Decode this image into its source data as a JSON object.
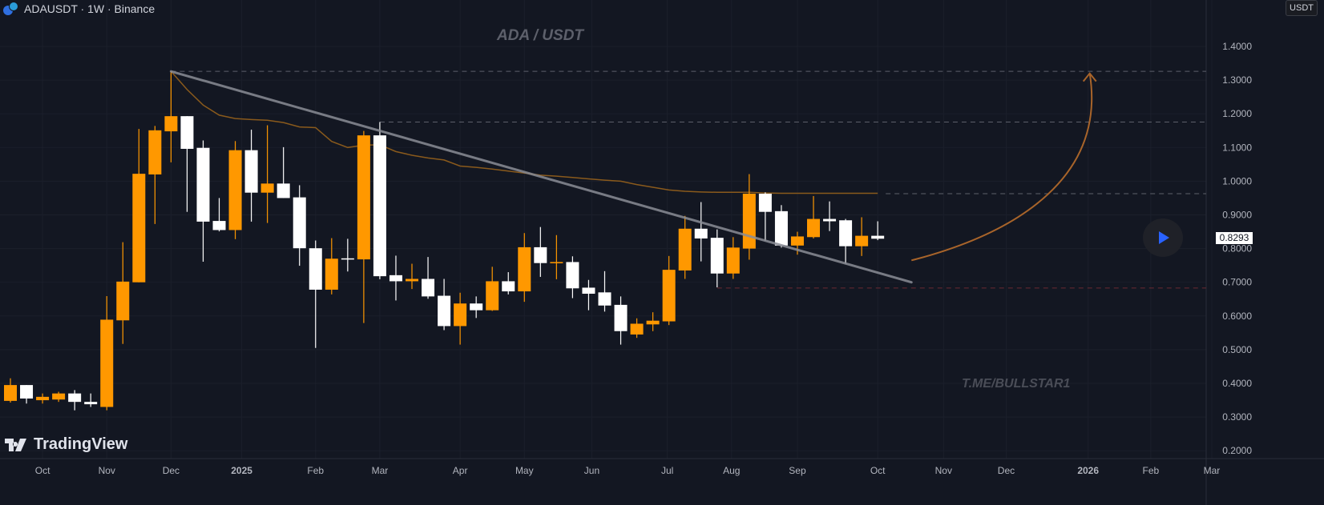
{
  "header": {
    "symbol_title": "ADAUSDT · 1W · Binance",
    "currency": "USDT"
  },
  "overlay": {
    "title": "ADA / USDT",
    "watermark": "T.ME/BULLSTAR1",
    "logo": "TradingView"
  },
  "last_price_label": "0.8293",
  "colors": {
    "bg": "#131722",
    "up": "#ff9800",
    "down": "#ffffff",
    "ma": "#8a5a1c",
    "trendline": "#8a8d96",
    "arrow": "#a8642a",
    "support": "#6b2a33",
    "accent": "#2962ff"
  },
  "chart_data": {
    "type": "candlestick",
    "interval": "1W",
    "ylim": [
      0.17,
      1.49
    ],
    "y_ticks": [
      "1.4000",
      "1.3000",
      "1.2000",
      "1.1000",
      "1.0000",
      "0.9000",
      "0.8000",
      "0.7000",
      "0.6000",
      "0.5000",
      "0.4000",
      "0.3000",
      "0.2000"
    ],
    "x_ticks": [
      {
        "label": "Oct",
        "at": 2
      },
      {
        "label": "Nov",
        "at": 6
      },
      {
        "label": "Dec",
        "at": 10
      },
      {
        "label": "2025",
        "at": 14.4
      },
      {
        "label": "Feb",
        "at": 19
      },
      {
        "label": "Mar",
        "at": 23
      },
      {
        "label": "Apr",
        "at": 28
      },
      {
        "label": "May",
        "at": 32
      },
      {
        "label": "Jun",
        "at": 36.2
      },
      {
        "label": "Jul",
        "at": 40.9
      },
      {
        "label": "Aug",
        "at": 44.9
      },
      {
        "label": "Sep",
        "at": 49
      },
      {
        "label": "Oct",
        "at": 54
      },
      {
        "label": "Nov",
        "at": 58.1
      },
      {
        "label": "Dec",
        "at": 62
      },
      {
        "label": "2026",
        "at": 67.1
      },
      {
        "label": "Feb",
        "at": 71
      },
      {
        "label": "Mar",
        "at": 74.8
      }
    ],
    "candles": [
      [
        0.348,
        0.415,
        0.343,
        0.395
      ],
      [
        0.395,
        0.395,
        0.34,
        0.355
      ],
      [
        0.35,
        0.37,
        0.34,
        0.36
      ],
      [
        0.352,
        0.375,
        0.345,
        0.37
      ],
      [
        0.37,
        0.38,
        0.32,
        0.345
      ],
      [
        0.345,
        0.37,
        0.33,
        0.338
      ],
      [
        0.33,
        0.659,
        0.32,
        0.589
      ],
      [
        0.587,
        0.819,
        0.517,
        0.702
      ],
      [
        0.7,
        1.155,
        0.7,
        1.022
      ],
      [
        1.02,
        1.164,
        0.873,
        1.151
      ],
      [
        1.148,
        1.326,
        1.056,
        1.193
      ],
      [
        1.193,
        1.193,
        0.909,
        1.096
      ],
      [
        1.099,
        1.121,
        0.761,
        0.88
      ],
      [
        0.882,
        0.95,
        0.851,
        0.855
      ],
      [
        0.855,
        1.119,
        0.828,
        1.092
      ],
      [
        1.092,
        1.153,
        0.88,
        0.966
      ],
      [
        0.966,
        1.166,
        0.876,
        0.993
      ],
      [
        0.993,
        1.101,
        0.95,
        0.95
      ],
      [
        0.952,
        0.988,
        0.749,
        0.801
      ],
      [
        0.801,
        0.824,
        0.505,
        0.678
      ],
      [
        0.678,
        0.831,
        0.664,
        0.77
      ],
      [
        0.771,
        0.829,
        0.732,
        0.768
      ],
      [
        0.768,
        1.149,
        0.579,
        1.136
      ],
      [
        1.136,
        1.1756,
        0.709,
        0.718
      ],
      [
        0.721,
        0.779,
        0.646,
        0.703
      ],
      [
        0.703,
        0.755,
        0.68,
        0.71
      ],
      [
        0.71,
        0.775,
        0.651,
        0.658
      ],
      [
        0.66,
        0.71,
        0.558,
        0.57
      ],
      [
        0.57,
        0.669,
        0.515,
        0.637
      ],
      [
        0.637,
        0.658,
        0.594,
        0.617
      ],
      [
        0.617,
        0.746,
        0.615,
        0.703
      ],
      [
        0.703,
        0.73,
        0.664,
        0.673
      ],
      [
        0.673,
        0.846,
        0.642,
        0.804
      ],
      [
        0.804,
        0.864,
        0.716,
        0.757
      ],
      [
        0.757,
        0.84,
        0.709,
        0.76
      ],
      [
        0.76,
        0.777,
        0.653,
        0.682
      ],
      [
        0.684,
        0.707,
        0.617,
        0.666
      ],
      [
        0.67,
        0.733,
        0.613,
        0.631
      ],
      [
        0.633,
        0.658,
        0.515,
        0.555
      ],
      [
        0.545,
        0.593,
        0.535,
        0.577
      ],
      [
        0.575,
        0.611,
        0.555,
        0.586
      ],
      [
        0.584,
        0.778,
        0.573,
        0.737
      ],
      [
        0.735,
        0.897,
        0.71,
        0.859
      ],
      [
        0.859,
        0.938,
        0.762,
        0.83
      ],
      [
        0.832,
        0.857,
        0.685,
        0.726
      ],
      [
        0.726,
        0.834,
        0.71,
        0.803
      ],
      [
        0.8,
        1.021,
        0.767,
        0.963
      ],
      [
        0.963,
        0.967,
        0.823,
        0.909
      ],
      [
        0.911,
        0.929,
        0.803,
        0.809
      ],
      [
        0.809,
        0.85,
        0.782,
        0.836
      ],
      [
        0.834,
        0.956,
        0.83,
        0.888
      ],
      [
        0.888,
        0.94,
        0.852,
        0.881
      ],
      [
        0.884,
        0.888,
        0.755,
        0.807
      ],
      [
        0.807,
        0.893,
        0.778,
        0.838
      ],
      [
        0.838,
        0.881,
        0.825,
        0.8293
      ]
    ],
    "candle_format": [
      "open",
      "high",
      "low",
      "close"
    ],
    "ma": {
      "start_index": 10,
      "values": [
        1.326,
        1.272,
        1.226,
        1.196,
        1.186,
        1.183,
        1.181,
        1.174,
        1.161,
        1.159,
        1.118,
        1.1,
        1.107,
        1.108,
        1.088,
        1.077,
        1.069,
        1.063,
        1.045,
        1.041,
        1.036,
        1.03,
        1.024,
        1.018,
        1.015,
        1.011,
        1.007,
        1.003,
        1.0,
        0.99,
        0.982,
        0.974,
        0.97,
        0.968,
        0.967,
        0.967,
        0.967,
        0.965,
        0.964,
        0.964,
        0.964,
        0.964,
        0.964,
        0.964,
        0.964
      ]
    },
    "trendline": {
      "from": [
        10,
        1.326
      ],
      "to": [
        56.1,
        0.7
      ]
    },
    "levels": [
      {
        "price": 1.326,
        "from": 10,
        "style": "gray"
      },
      {
        "price": 1.1756,
        "from": 23,
        "style": "gray"
      },
      {
        "price": 0.963,
        "from": 54.5,
        "style": "gray"
      },
      {
        "price": 0.683,
        "from": 44,
        "style": "red"
      }
    ],
    "arrow": {
      "start": [
        56.1,
        0.765
      ],
      "c1": [
        63,
        0.85
      ],
      "c2": [
        68.2,
        1.02
      ],
      "end": [
        67.2,
        1.32
      ]
    }
  }
}
